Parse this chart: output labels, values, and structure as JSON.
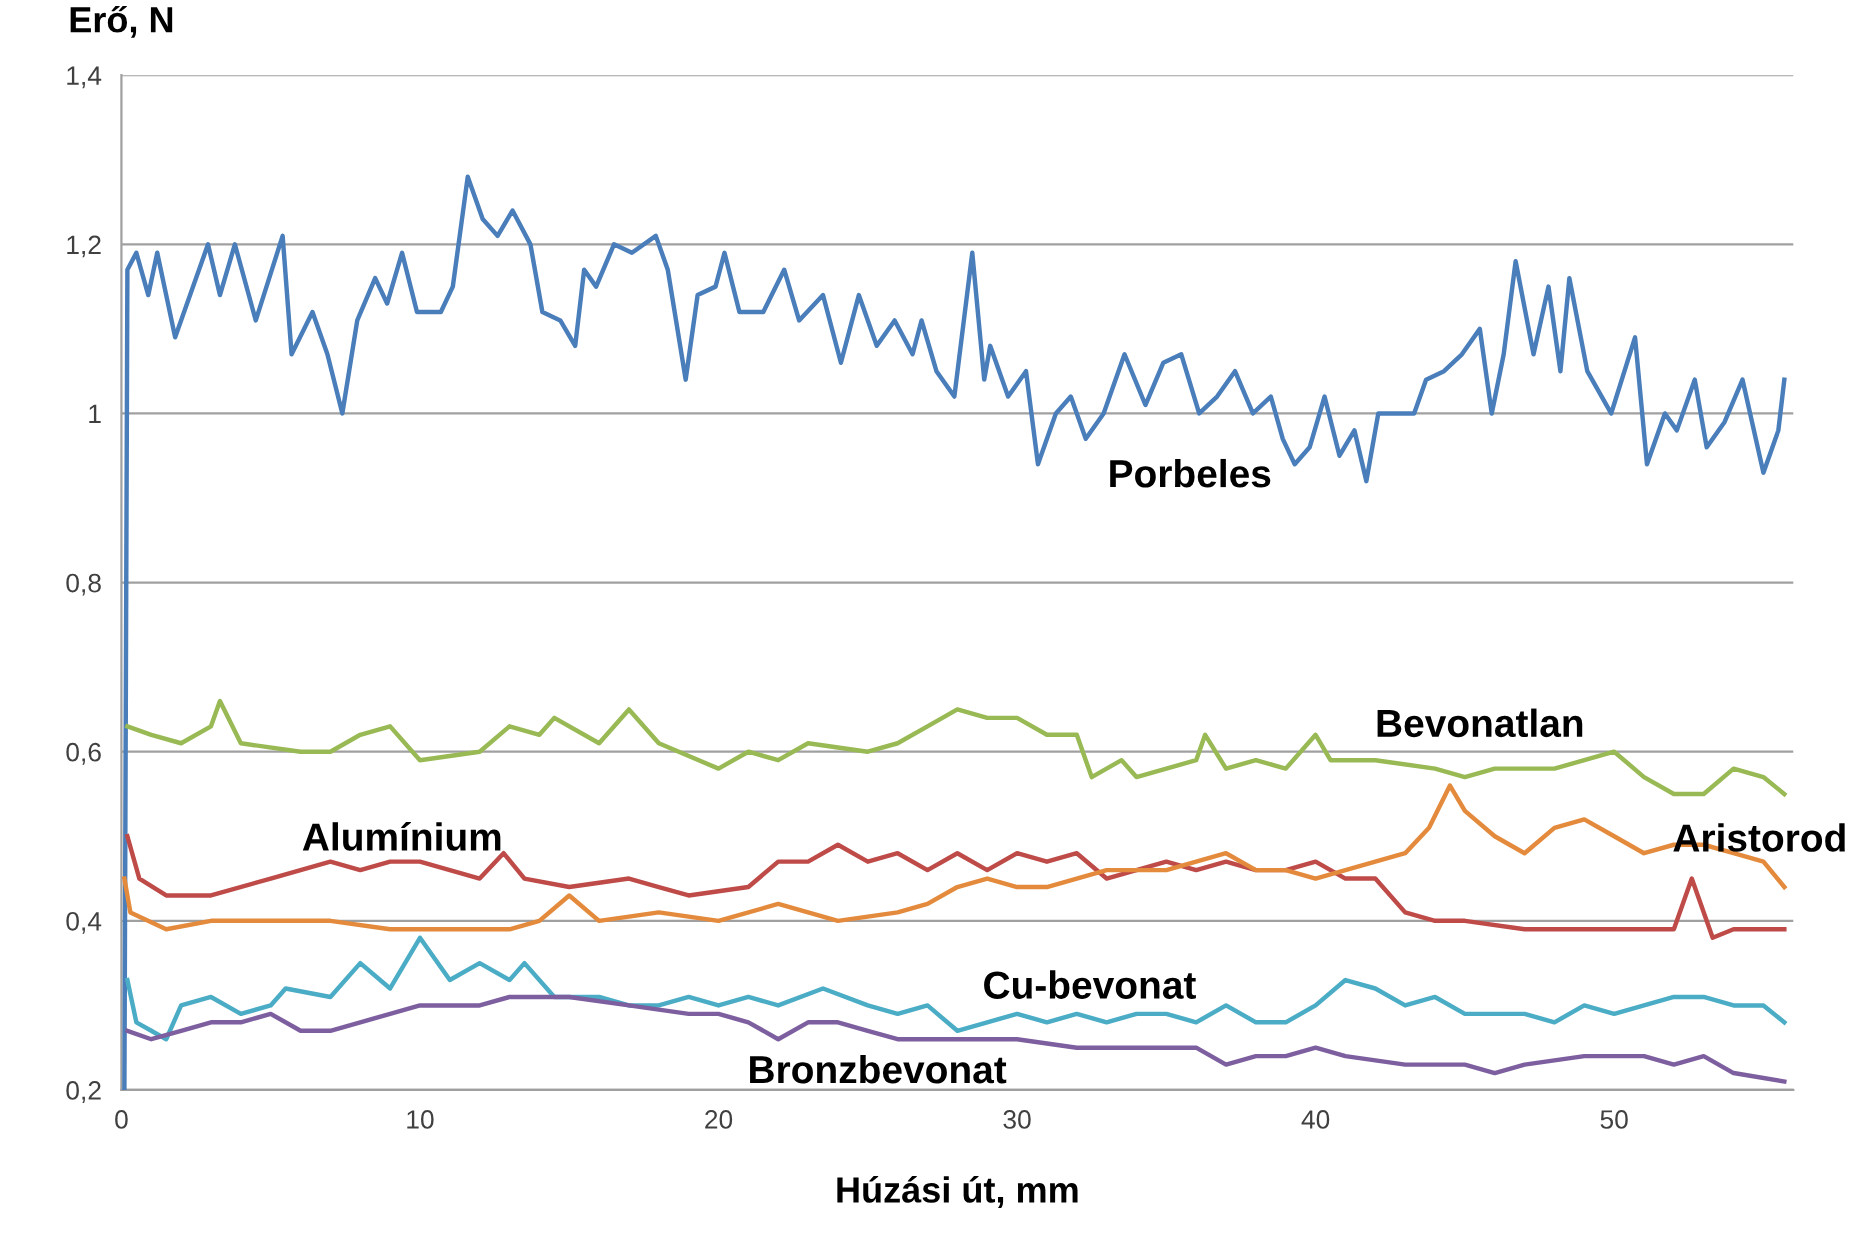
{
  "chart_data": {
    "type": "line",
    "xlabel": "Húzási út, mm",
    "ylabel": "Erő, N",
    "xlim": [
      0,
      56
    ],
    "ylim": [
      0.2,
      1.4
    ],
    "xticks": [
      0,
      10,
      20,
      30,
      40,
      50
    ],
    "yticks": [
      {
        "value": 0.2,
        "label": "0,2"
      },
      {
        "value": 0.4,
        "label": "0,4"
      },
      {
        "value": 0.6,
        "label": "0,6"
      },
      {
        "value": 0.8,
        "label": "0,8"
      },
      {
        "value": 1,
        "label": "1"
      },
      {
        "value": 1.2,
        "label": "1,2"
      },
      {
        "value": 1.4,
        "label": "1,4"
      }
    ],
    "grid": "y",
    "legend": false,
    "marker": "none",
    "line_style": "solid",
    "series": [
      {
        "name": "Porbeles",
        "color": "#4a7ebb",
        "x": [
          0.1,
          0.2,
          0.5,
          0.9,
          1.2,
          1.8,
          2.3,
          2.9,
          3.3,
          3.8,
          4.5,
          5.4,
          5.7,
          6.4,
          6.9,
          7.4,
          7.9,
          8.5,
          8.9,
          9.4,
          9.9,
          10.7,
          11.1,
          11.6,
          12.1,
          12.6,
          13.1,
          13.7,
          14.1,
          14.7,
          15.2,
          15.5,
          15.9,
          16.5,
          17.1,
          17.9,
          18.3,
          18.9,
          19.3,
          19.9,
          20.2,
          20.7,
          21.5,
          22.2,
          22.7,
          23.5,
          24.1,
          24.7,
          25.3,
          25.9,
          26.5,
          26.8,
          27.3,
          27.9,
          28.5,
          28.9,
          29.1,
          29.7,
          30.3,
          30.7,
          31.3,
          31.8,
          32.3,
          32.9,
          33.6,
          34.3,
          34.9,
          35.5,
          36.1,
          36.7,
          37.3,
          37.9,
          38.5,
          38.9,
          39.3,
          39.8,
          40.3,
          40.8,
          41.3,
          41.7,
          42.1,
          42.7,
          43.3,
          43.7,
          44.3,
          44.9,
          45.5,
          45.9,
          46.3,
          46.7,
          47.3,
          47.8,
          48.2,
          48.5,
          49.1,
          49.9,
          50.7,
          51.1,
          51.7,
          52.1,
          52.7,
          53.1,
          53.7,
          54.3,
          55.0,
          55.5,
          55.7
        ],
        "values": [
          0.2,
          1.17,
          1.19,
          1.14,
          1.19,
          1.09,
          1.14,
          1.2,
          1.14,
          1.2,
          1.11,
          1.21,
          1.07,
          1.12,
          1.07,
          1.0,
          1.11,
          1.16,
          1.13,
          1.19,
          1.12,
          1.12,
          1.15,
          1.28,
          1.23,
          1.21,
          1.24,
          1.2,
          1.12,
          1.11,
          1.08,
          1.17,
          1.15,
          1.2,
          1.19,
          1.21,
          1.17,
          1.04,
          1.14,
          1.15,
          1.19,
          1.12,
          1.12,
          1.17,
          1.11,
          1.14,
          1.06,
          1.14,
          1.08,
          1.11,
          1.07,
          1.11,
          1.05,
          1.02,
          1.19,
          1.04,
          1.08,
          1.02,
          1.05,
          0.94,
          1.0,
          1.02,
          0.97,
          1.0,
          1.07,
          1.01,
          1.06,
          1.07,
          1.0,
          1.02,
          1.05,
          1.0,
          1.02,
          0.97,
          0.94,
          0.96,
          1.02,
          0.95,
          0.98,
          0.92,
          1.0,
          1.0,
          1.0,
          1.04,
          1.05,
          1.07,
          1.1,
          1.0,
          1.07,
          1.18,
          1.07,
          1.15,
          1.05,
          1.16,
          1.05,
          1.0,
          1.09,
          0.94,
          1.0,
          0.98,
          1.04,
          0.96,
          0.99,
          1.04,
          0.93,
          0.98,
          1.04
        ]
      },
      {
        "name": "Bevonatlan",
        "color": "#98b954",
        "x": [
          0.2,
          1,
          2,
          3,
          3.3,
          4,
          6,
          7,
          8,
          9,
          10,
          12,
          13,
          14,
          14.5,
          16,
          17,
          18,
          20,
          21,
          22,
          23,
          25,
          26,
          27,
          28,
          29,
          30,
          31,
          32,
          32.5,
          33.5,
          34,
          35,
          36,
          36.3,
          37,
          38,
          39,
          40,
          40.5,
          42,
          44,
          45,
          46,
          48,
          49,
          50,
          51,
          52,
          53,
          54,
          55,
          55.7
        ],
        "values": [
          0.63,
          0.62,
          0.61,
          0.63,
          0.66,
          0.61,
          0.6,
          0.6,
          0.62,
          0.63,
          0.59,
          0.6,
          0.63,
          0.62,
          0.64,
          0.61,
          0.65,
          0.61,
          0.58,
          0.6,
          0.59,
          0.61,
          0.6,
          0.61,
          0.63,
          0.65,
          0.64,
          0.64,
          0.62,
          0.62,
          0.57,
          0.59,
          0.57,
          0.58,
          0.59,
          0.62,
          0.58,
          0.59,
          0.58,
          0.62,
          0.59,
          0.59,
          0.58,
          0.57,
          0.58,
          0.58,
          0.59,
          0.6,
          0.57,
          0.55,
          0.55,
          0.58,
          0.57,
          0.55
        ]
      },
      {
        "name": "Alumínium",
        "color": "#be4b48",
        "x": [
          0.2,
          0.6,
          1.5,
          3,
          5,
          6,
          7,
          8,
          9,
          10,
          11,
          12,
          12.8,
          13.5,
          15,
          17,
          18,
          19,
          21,
          22,
          23,
          24,
          25,
          26,
          27,
          28,
          29,
          30,
          31,
          32,
          33,
          34,
          35,
          36,
          37,
          38,
          39,
          40,
          41,
          42,
          43,
          44,
          45,
          47,
          49,
          51,
          52,
          52.6,
          53.3,
          54,
          55.7
        ],
        "values": [
          0.5,
          0.45,
          0.43,
          0.43,
          0.45,
          0.46,
          0.47,
          0.46,
          0.47,
          0.47,
          0.46,
          0.45,
          0.48,
          0.45,
          0.44,
          0.45,
          0.44,
          0.43,
          0.44,
          0.47,
          0.47,
          0.49,
          0.47,
          0.48,
          0.46,
          0.48,
          0.46,
          0.48,
          0.47,
          0.48,
          0.45,
          0.46,
          0.47,
          0.46,
          0.47,
          0.46,
          0.46,
          0.47,
          0.45,
          0.45,
          0.41,
          0.4,
          0.4,
          0.39,
          0.39,
          0.39,
          0.39,
          0.45,
          0.38,
          0.39,
          0.39
        ]
      },
      {
        "name": "Aristorod",
        "color": "#e48a3c",
        "x": [
          0.1,
          0.3,
          1.5,
          3,
          5,
          7,
          9,
          11,
          13,
          14,
          15,
          16,
          18,
          20,
          22,
          24,
          26,
          27,
          28,
          29,
          30,
          31,
          33,
          35,
          37,
          38,
          39,
          40,
          41,
          42,
          43,
          43.8,
          44.5,
          45,
          46,
          47,
          48,
          49,
          50,
          51,
          52,
          53,
          54,
          55,
          55.7
        ],
        "values": [
          0.45,
          0.41,
          0.39,
          0.4,
          0.4,
          0.4,
          0.39,
          0.39,
          0.39,
          0.4,
          0.43,
          0.4,
          0.41,
          0.4,
          0.42,
          0.4,
          0.41,
          0.42,
          0.44,
          0.45,
          0.44,
          0.44,
          0.46,
          0.46,
          0.48,
          0.46,
          0.46,
          0.45,
          0.46,
          0.47,
          0.48,
          0.51,
          0.56,
          0.53,
          0.5,
          0.48,
          0.51,
          0.52,
          0.5,
          0.48,
          0.49,
          0.49,
          0.48,
          0.47,
          0.44
        ]
      },
      {
        "name": "Cu-bevonat",
        "color": "#4bacc6",
        "x": [
          0.2,
          0.5,
          1,
          1.5,
          2,
          3,
          4,
          5,
          5.5,
          7,
          8,
          9,
          10,
          11,
          12,
          13,
          13.5,
          14.5,
          16,
          17,
          18,
          19,
          20,
          21,
          22,
          23.5,
          25,
          26,
          27,
          28,
          29,
          30,
          31,
          32,
          33,
          34,
          35,
          36,
          37,
          38,
          39,
          40,
          41,
          42,
          43,
          44,
          45,
          47,
          48,
          49,
          50,
          51,
          52,
          53,
          54,
          55,
          55.7
        ],
        "values": [
          0.33,
          0.28,
          0.27,
          0.26,
          0.3,
          0.31,
          0.29,
          0.3,
          0.32,
          0.31,
          0.35,
          0.32,
          0.38,
          0.33,
          0.35,
          0.33,
          0.35,
          0.31,
          0.31,
          0.3,
          0.3,
          0.31,
          0.3,
          0.31,
          0.3,
          0.32,
          0.3,
          0.29,
          0.3,
          0.27,
          0.28,
          0.29,
          0.28,
          0.29,
          0.28,
          0.29,
          0.29,
          0.28,
          0.3,
          0.28,
          0.28,
          0.3,
          0.33,
          0.32,
          0.3,
          0.31,
          0.29,
          0.29,
          0.28,
          0.3,
          0.29,
          0.3,
          0.31,
          0.31,
          0.3,
          0.3,
          0.28
        ]
      },
      {
        "name": "Bronzbevonat",
        "color": "#7d5fa0",
        "x": [
          0.2,
          1,
          2,
          3,
          4,
          5,
          6,
          7,
          8,
          9,
          10,
          12,
          13,
          15,
          17,
          19,
          20,
          21,
          22,
          23,
          24,
          25,
          26,
          28,
          30,
          32,
          34,
          36,
          37,
          38,
          39,
          40,
          41,
          43,
          45,
          46,
          47,
          49,
          51,
          52,
          53,
          54,
          55.7
        ],
        "values": [
          0.27,
          0.26,
          0.27,
          0.28,
          0.28,
          0.29,
          0.27,
          0.27,
          0.28,
          0.29,
          0.3,
          0.3,
          0.31,
          0.31,
          0.3,
          0.29,
          0.29,
          0.28,
          0.26,
          0.28,
          0.28,
          0.27,
          0.26,
          0.26,
          0.26,
          0.25,
          0.25,
          0.25,
          0.23,
          0.24,
          0.24,
          0.25,
          0.24,
          0.23,
          0.23,
          0.22,
          0.23,
          0.24,
          0.24,
          0.23,
          0.24,
          0.22,
          0.21
        ]
      }
    ]
  }
}
